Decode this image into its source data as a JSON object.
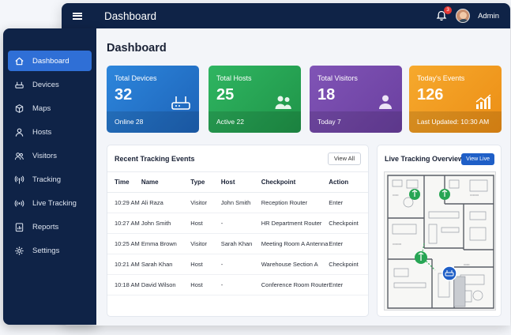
{
  "header": {
    "title": "Dashboard",
    "notifications_count": "3",
    "user_name": "Admin"
  },
  "sidebar": {
    "items": [
      {
        "label": "Dashboard",
        "icon": "home-icon",
        "active": true
      },
      {
        "label": "Devices",
        "icon": "router-icon"
      },
      {
        "label": "Maps",
        "icon": "map-icon"
      },
      {
        "label": "Hosts",
        "icon": "person-icon"
      },
      {
        "label": "Visitors",
        "icon": "group-icon"
      },
      {
        "label": "Tracking",
        "icon": "signal-icon"
      },
      {
        "label": "Live Tracking",
        "icon": "broadcast-icon"
      },
      {
        "label": "Reports",
        "icon": "report-icon"
      },
      {
        "label": "Settings",
        "icon": "gear-icon"
      }
    ]
  },
  "page": {
    "title": "Dashboard"
  },
  "cards": [
    {
      "label": "Total Devices",
      "value": "32",
      "footer": "Online  28",
      "color": "#2275cb"
    },
    {
      "label": "Total Hosts",
      "value": "25",
      "footer": "Active  22",
      "color": "#27a554"
    },
    {
      "label": "Total Visitors",
      "value": "18",
      "footer": "Today  7",
      "color": "#7549aa"
    },
    {
      "label": "Today's Events",
      "value": "126",
      "footer": "Last Updated: 10:30 AM",
      "color": "#f19c20"
    }
  ],
  "events": {
    "title": "Recent Tracking Events",
    "view_all_label": "View All",
    "columns": [
      "Time",
      "Name",
      "Type",
      "Host",
      "Checkpoint",
      "Action"
    ],
    "rows": [
      [
        "10:29 AM",
        "Ali Raza",
        "Visitor",
        "John Smith",
        "Reception Router",
        "Enter"
      ],
      [
        "10:27 AM",
        "John Smith",
        "Host",
        "-",
        "HR Department Router",
        "Checkpoint"
      ],
      [
        "10:25 AM",
        "Emma Brown",
        "Visitor",
        "Sarah Khan",
        "Meeting Room A Antenna",
        "Enter"
      ],
      [
        "10:21 AM",
        "Sarah Khan",
        "Host",
        "-",
        "Warehouse Section A",
        "Checkpoint"
      ],
      [
        "10:18 AM",
        "David Wilson",
        "Host",
        "-",
        "Conference Room Router",
        "Enter"
      ]
    ]
  },
  "live": {
    "title": "Live Tracking Overview",
    "view_live_label": "View Live"
  }
}
